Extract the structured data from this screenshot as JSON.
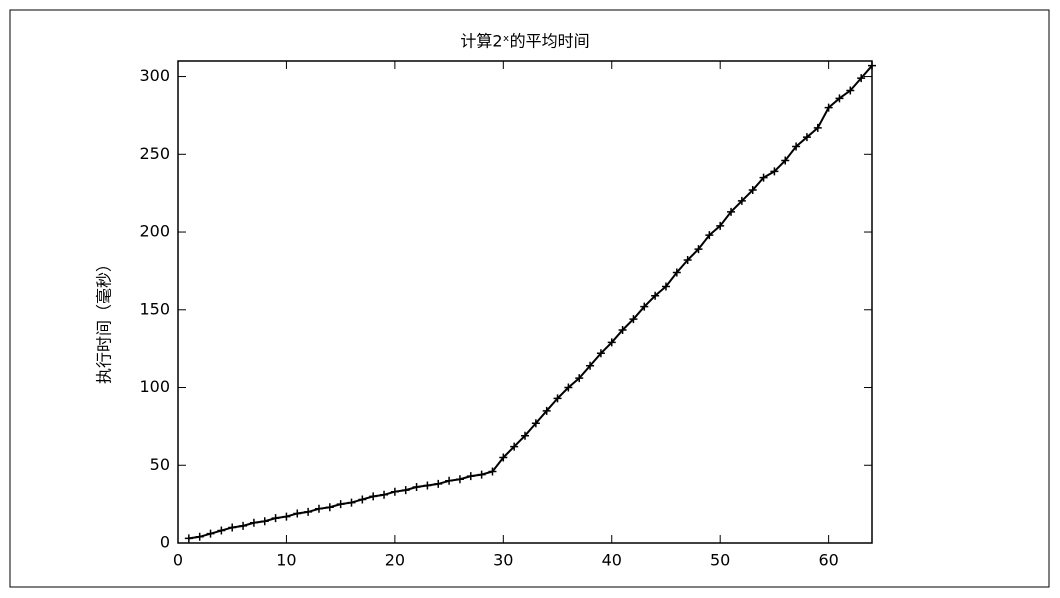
{
  "chart_data": {
    "type": "line",
    "title": "计算2ˣ的平均时间",
    "y_label": "执行时间（毫秒）",
    "color": "#000000",
    "x": [
      1,
      2,
      3,
      4,
      5,
      6,
      7,
      8,
      9,
      10,
      11,
      12,
      13,
      14,
      15,
      16,
      17,
      18,
      19,
      20,
      21,
      22,
      23,
      24,
      25,
      26,
      27,
      28,
      29,
      30,
      31,
      32,
      33,
      34,
      35,
      36,
      37,
      38,
      39,
      40,
      41,
      42,
      43,
      44,
      45,
      46,
      47,
      48,
      49,
      50,
      51,
      52,
      53,
      54,
      55,
      56,
      57,
      58,
      59,
      60,
      61,
      62,
      63,
      64
    ],
    "values": [
      3,
      4,
      6,
      8,
      10,
      11,
      13,
      14,
      16,
      17,
      19,
      20,
      22,
      23,
      25,
      26,
      28,
      30,
      31,
      33,
      34,
      36,
      37,
      38,
      40,
      41,
      43,
      44,
      46,
      55,
      62,
      69,
      77,
      85,
      93,
      100,
      106,
      114,
      122,
      129,
      137,
      144,
      152,
      159,
      165,
      174,
      182,
      189,
      198,
      204,
      213,
      220,
      227,
      235,
      239,
      246,
      255,
      261,
      267,
      280,
      286,
      291,
      299,
      307
    ],
    "xlim": [
      0,
      64
    ],
    "xticks": [
      0,
      10,
      20,
      30,
      40,
      50,
      60
    ],
    "ylim": [
      0,
      310
    ],
    "yticks": [
      0,
      50,
      100,
      150,
      200,
      250,
      300
    ]
  }
}
